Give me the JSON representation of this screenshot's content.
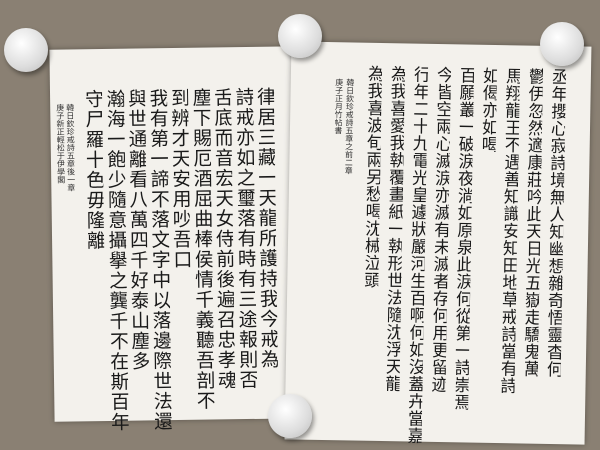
{
  "left_sheet": {
    "columns": [
      "律居三藏一天龍所護持我今戒為",
      "詩戒亦如之璽落有時有三途報則否",
      "舌底而音宏天女侍前後遍召忠孝魂",
      "塵下賜厄酒屈曲棒侯情千義聽吾剖不",
      "到辨才天安用吵吾口",
      "我有第一諦不落文字中以落邊際世法還",
      "與世通離看八萬四千好泰山塵多",
      "瀚海一飽少隨意攝擧之龔千不在斯百年",
      "守尸羅十色毋隆離"
    ],
    "signature": [
      "韓日欽珍戒詩五章後一章",
      "庚子新正輕松于伊學閣"
    ]
  },
  "right_sheet": {
    "columns": [
      "丞年攖心寂詩境無人知幽想雜奇悟靈杳何",
      "鬱伊忽然適康莊吟此天日光五嶽走驕鬼萬",
      "馬翔龍王不遇善知識安知田地草戒詩當有詩",
      "如偈亦如喝",
      "百願叢一破淚夜淌如原泉此淚何從第一詩崇焉",
      "今皆空兩心滅淚亦滅有未滅者存何用更留迹",
      "行年二十九電光皇遽狀嚴河生百啊何如沒蓋卉當嘉",
      "為我喜愛我執覆畫紙一執形世法隨沈浮天龍",
      "為我喜波旬兩另愁喝沈械泣頭"
    ],
    "signature": [
      "韓日欽珍戒詩五章之前二章",
      "庚子正月竹帖書"
    ]
  }
}
